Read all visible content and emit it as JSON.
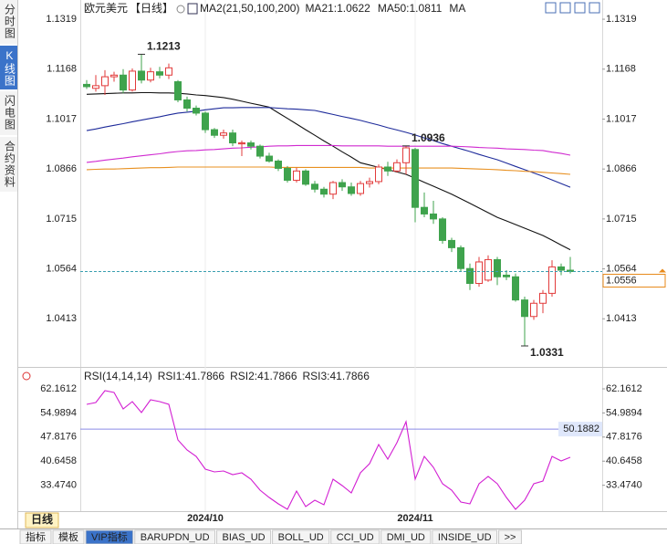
{
  "sidebar": {
    "tabs": [
      "分时图",
      "K线图",
      "闪电图",
      "合约资料"
    ],
    "active": 1
  },
  "footer": {
    "period": "日线",
    "tabs": [
      "指标",
      "模板",
      "VIP指标",
      "BARUPDN_UD",
      "BIAS_UD",
      "BOLL_UD",
      "CCI_UD",
      "DMI_UD",
      "INSIDE_UD",
      ">>"
    ],
    "active": 2
  },
  "chart_data": [
    {
      "type": "candlestick",
      "title": "欧元美元",
      "period": "【日线】",
      "indicator": "MA2(21,50,100,200)",
      "categories": [
        null,
        null,
        null,
        null,
        null,
        null,
        null,
        null,
        null,
        null,
        null,
        null,
        null,
        "2024/10",
        null,
        null,
        null,
        null,
        null,
        null,
        null,
        null,
        null,
        null,
        null,
        null,
        null,
        null,
        null,
        null,
        null,
        null,
        null,
        null,
        null,
        null,
        "2024/11",
        null,
        null,
        null,
        null,
        null,
        null,
        null,
        null,
        null,
        null,
        null,
        null,
        null,
        null,
        null,
        null,
        null
      ],
      "open": [
        1.1122,
        1.111,
        1.1118,
        1.1145,
        1.115,
        1.1105,
        1.1162,
        1.1135,
        1.116,
        1.115,
        1.113,
        1.1075,
        1.105,
        1.1035,
        1.0985,
        1.0968,
        1.0975,
        1.0942,
        1.0945,
        1.0935,
        1.0905,
        1.089,
        1.0868,
        1.0832,
        1.086,
        1.082,
        1.0805,
        1.079,
        1.0825,
        1.0812,
        1.0792,
        1.0822,
        1.0828,
        1.0872,
        1.086,
        1.0885,
        1.0925,
        1.075,
        1.073,
        1.0715,
        1.065,
        1.0628,
        1.0565,
        1.052,
        1.053,
        1.0592,
        1.0545,
        1.054,
        1.047,
        1.042,
        1.046,
        1.049,
        1.057,
        1.056
      ],
      "high": [
        1.1135,
        1.115,
        1.1165,
        1.116,
        1.1168,
        1.117,
        1.1213,
        1.1172,
        1.1175,
        1.1185,
        1.1135,
        1.1085,
        1.1058,
        1.104,
        1.099,
        1.0985,
        1.0985,
        1.0952,
        1.0952,
        1.094,
        1.0915,
        1.0895,
        1.0875,
        1.087,
        1.0865,
        1.083,
        1.0812,
        1.083,
        1.0835,
        1.0825,
        1.083,
        1.084,
        1.088,
        1.0888,
        1.0895,
        1.0936,
        1.093,
        1.0795,
        1.077,
        1.072,
        1.0658,
        1.0635,
        1.058,
        1.06,
        1.0605,
        1.06,
        1.056,
        1.055,
        1.048,
        1.047,
        1.05,
        1.059,
        1.058,
        1.06
      ],
      "low": [
        1.1108,
        1.11,
        1.109,
        1.113,
        1.1095,
        1.11,
        1.1125,
        1.1128,
        1.114,
        1.1138,
        1.1068,
        1.104,
        1.1028,
        1.0975,
        1.096,
        1.0958,
        1.0935,
        1.0905,
        1.0925,
        1.0898,
        1.0885,
        1.086,
        1.0825,
        1.0825,
        1.0815,
        1.0795,
        1.078,
        1.0775,
        1.08,
        1.0785,
        1.0785,
        1.081,
        1.082,
        1.0845,
        1.0855,
        1.085,
        1.0705,
        1.072,
        1.07,
        1.064,
        1.0615,
        1.0555,
        1.05,
        1.051,
        1.0525,
        1.0515,
        1.053,
        1.0465,
        1.0331,
        1.041,
        1.043,
        1.048,
        1.0545,
        1.055
      ],
      "close": [
        1.1115,
        1.1118,
        1.1145,
        1.115,
        1.1105,
        1.1162,
        1.1135,
        1.116,
        1.115,
        1.1172,
        1.1075,
        1.105,
        1.1035,
        1.0985,
        1.0968,
        1.0975,
        1.0945,
        1.0945,
        1.0935,
        1.0905,
        1.089,
        1.0868,
        1.0832,
        1.086,
        1.082,
        1.0805,
        1.079,
        1.0825,
        1.0812,
        1.0792,
        1.0822,
        1.0828,
        1.0872,
        1.086,
        1.0885,
        1.093,
        1.075,
        1.073,
        1.0715,
        1.065,
        1.0628,
        1.0565,
        1.052,
        1.0585,
        1.0592,
        1.054,
        1.054,
        1.047,
        1.042,
        1.046,
        1.049,
        1.057,
        1.056,
        1.0556
      ],
      "up_color": "#e23b3b",
      "down_color": "#3fa34d",
      "series": [
        {
          "name": "MA21:1.0622",
          "color": "#111111",
          "values": [
            1.1092,
            1.1093,
            1.1094,
            1.1095,
            1.1096,
            1.1096,
            1.1097,
            1.1097,
            1.1096,
            1.1096,
            1.1095,
            1.1093,
            1.109,
            1.1088,
            1.1085,
            1.1082,
            1.1077,
            1.1071,
            1.1065,
            1.1059,
            1.1053,
            1.1036,
            1.1019,
            1.1002,
            1.0985,
            1.0968,
            1.0951,
            1.0935,
            1.0918,
            1.0902,
            1.0885,
            1.0878,
            1.0871,
            1.0864,
            1.0857,
            1.085,
            1.0838,
            1.0826,
            1.0814,
            1.0802,
            1.079,
            1.0776,
            1.0762,
            1.0748,
            1.0734,
            1.072,
            1.0709,
            1.0698,
            1.0687,
            1.0676,
            1.0665,
            1.0651,
            1.0636,
            1.0622
          ]
        },
        {
          "name": "MA50:1.0811",
          "color": "#1d2a9a",
          "values": [
            1.0982,
            1.0987,
            1.0993,
            1.0998,
            1.1003,
            1.1009,
            1.1014,
            1.1019,
            1.1024,
            1.103,
            1.1035,
            1.1038,
            1.1041,
            1.1045,
            1.1048,
            1.1051,
            1.1051,
            1.1052,
            1.1052,
            1.1052,
            1.1052,
            1.105,
            1.1048,
            1.1047,
            1.1045,
            1.1043,
            1.1037,
            1.1031,
            1.1025,
            1.1019,
            1.1013,
            1.1006,
            1.0999,
            1.0991,
            1.0984,
            1.0977,
            1.0969,
            1.096,
            1.0952,
            1.0943,
            1.0935,
            1.0927,
            1.0919,
            1.091,
            1.0902,
            1.0894,
            1.0884,
            1.0874,
            1.0864,
            1.0854,
            1.0844,
            1.0833,
            1.0822,
            1.0811
          ]
        },
        {
          "name": "MA",
          "color": "#d02ad0",
          "values": [
            1.0886,
            1.0889,
            1.0893,
            1.0896,
            1.0899,
            1.0903,
            1.0906,
            1.0909,
            1.0912,
            1.0916,
            1.0919,
            1.0921,
            1.0922,
            1.0924,
            1.0925,
            1.0927,
            1.0929,
            1.093,
            1.0932,
            1.0933,
            1.0935,
            1.0936,
            1.0936,
            1.0937,
            1.0937,
            1.0937,
            1.0937,
            1.0937,
            1.0936,
            1.0936,
            1.0936,
            1.0936,
            1.0936,
            1.0935,
            1.0935,
            1.0935,
            1.0935,
            1.0935,
            1.0935,
            1.0935,
            1.0935,
            1.0934,
            1.0933,
            1.0931,
            1.093,
            1.0929,
            1.0927,
            1.0926,
            1.0925,
            1.0923,
            1.0922,
            1.0917,
            1.0913,
            1.0908
          ]
        },
        {
          "color": "#e89020",
          "values": [
            1.0864,
            1.0865,
            1.0866,
            1.0866,
            1.0867,
            1.0868,
            1.0869,
            1.087,
            1.087,
            1.0871,
            1.0872,
            1.0872,
            1.0872,
            1.0872,
            1.0872,
            1.0872,
            1.0872,
            1.0872,
            1.0872,
            1.0872,
            1.0872,
            1.0871,
            1.0871,
            1.0871,
            1.0871,
            1.0871,
            1.0871,
            1.0871,
            1.0871,
            1.0871,
            1.0871,
            1.0869,
            1.0869,
            1.0869,
            1.0869,
            1.0869,
            1.0869,
            1.0869,
            1.0869,
            1.0869,
            1.0869,
            1.0868,
            1.0867,
            1.0866,
            1.0865,
            1.0864,
            1.0862,
            1.0861,
            1.0859,
            1.0858,
            1.0856,
            1.0854,
            1.0852,
            1.085
          ]
        }
      ],
      "last_price": 1.0556,
      "last_price_color": "#e88a1a",
      "ylim": [
        1.0273,
        1.1344
      ],
      "yticks": [
        1.1319,
        1.1168,
        1.1017,
        1.0866,
        1.0715,
        1.0564,
        1.0413
      ]
    },
    {
      "type": "line",
      "indicator": "RSI(14,14,14)",
      "series": [
        {
          "name": "RSI1:41.7866",
          "color": "#d21fd2",
          "values": [
            57.54,
            58.09,
            61.62,
            61.08,
            56.19,
            58.36,
            55.1,
            58.9,
            58.36,
            57.54,
            46.95,
            43.96,
            42.06,
            38.26,
            37.45,
            37.72,
            36.63,
            37.17,
            35.27,
            32.01,
            29.84,
            27.94,
            26.31,
            31.74,
            27.12,
            29.03,
            27.67,
            35.27,
            33.37,
            31.2,
            37.17,
            39.89,
            45.59,
            41.25,
            46.14,
            52.38,
            35.27,
            42.06,
            38.8,
            33.91,
            32.01,
            28.48,
            27.94,
            33.91,
            36.09,
            33.91,
            29.84,
            26.31,
            29.03,
            33.91,
            34.73,
            42.06,
            40.7,
            41.79
          ]
        }
      ],
      "legend_extra": [
        {
          "text": "RSI2:41.7866",
          "color": "#2233cc"
        },
        {
          "text": "RSI3:41.7866",
          "color": "#d21fd2"
        }
      ],
      "reference_line": 50.1882,
      "ylim": [
        25.77,
        67.87
      ],
      "yticks": [
        62.1612,
        54.9894,
        47.8176,
        40.6458,
        {
          "value": 33.474,
          "label": "33.4740"
        }
      ]
    }
  ]
}
